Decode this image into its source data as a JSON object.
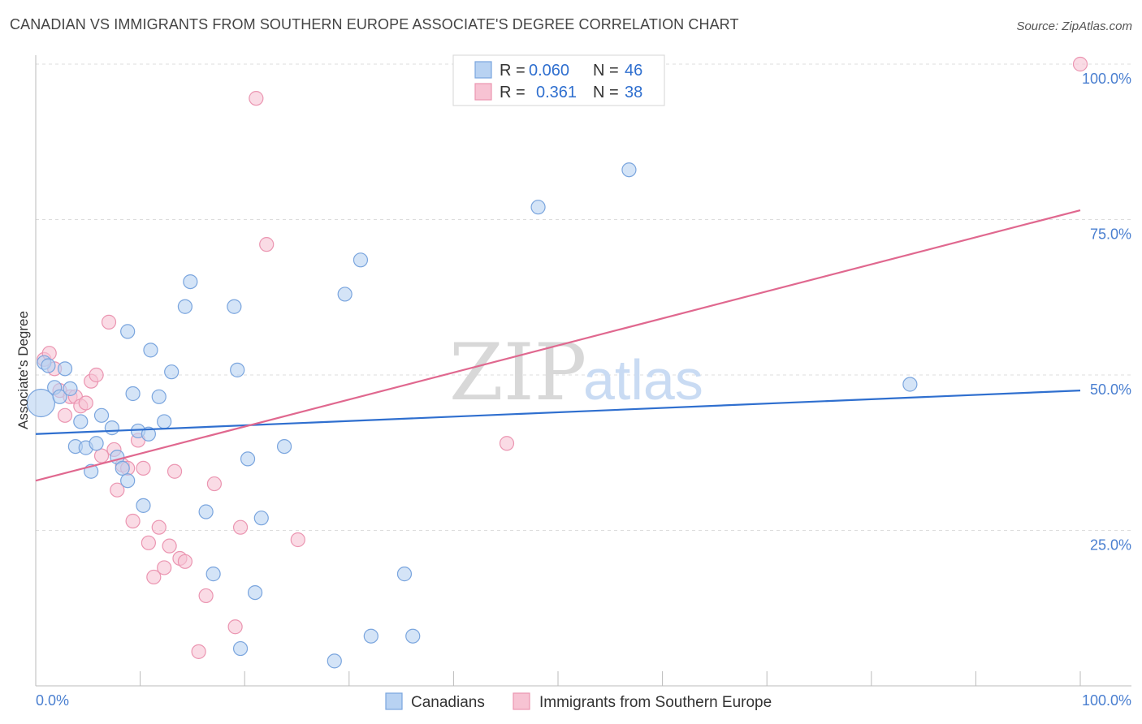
{
  "title": "CANADIAN VS IMMIGRANTS FROM SOUTHERN EUROPE ASSOCIATE'S DEGREE CORRELATION CHART",
  "source": "Source: ZipAtlas.com",
  "watermark": {
    "zip": "ZIP",
    "atlas": "atlas"
  },
  "legend_top": {
    "rows": [
      {
        "r_label": "R =",
        "r_value": "0.060",
        "n_label": "N =",
        "n_value": "46"
      },
      {
        "r_label": "R =",
        "r_value": "0.361",
        "n_label": "N =",
        "n_value": "38"
      }
    ]
  },
  "legend_bottom": [
    {
      "label": "Canadians"
    },
    {
      "label": "Immigrants from Southern Europe"
    }
  ],
  "colors": {
    "blue_fill": "#b8d2f2",
    "blue_stroke": "#7aa5de",
    "blue_line": "#2f6fcf",
    "pink_fill": "#f7c3d3",
    "pink_stroke": "#eb95b1",
    "pink_line": "#e0688f",
    "label_blue": "#4a7fd0"
  },
  "chart_data": {
    "type": "scatter",
    "title": "CANADIAN VS IMMIGRANTS FROM SOUTHERN EUROPE ASSOCIATE'S DEGREE CORRELATION CHART",
    "xlabel": "",
    "ylabel": "Associate's Degree",
    "xlim": [
      0,
      100
    ],
    "ylim": [
      0,
      100
    ],
    "x_tick_labels": [
      "0.0%",
      "100.0%"
    ],
    "y_tick_labels": [
      "25.0%",
      "50.0%",
      "75.0%",
      "100.0%"
    ],
    "y_ticks": [
      25,
      50,
      75,
      100
    ],
    "series": [
      {
        "name": "Canadians",
        "color": "blue",
        "r": 0.06,
        "n": 46,
        "trend": {
          "x0": 0,
          "y0": 40.5,
          "x1": 100,
          "y1": 47.5
        },
        "points": [
          [
            0.5,
            45.5
          ],
          [
            0.8,
            52.0
          ],
          [
            1.2,
            51.5
          ],
          [
            1.8,
            48.0
          ],
          [
            2.3,
            46.5
          ],
          [
            2.8,
            51.0
          ],
          [
            3.3,
            47.8
          ],
          [
            3.8,
            38.5
          ],
          [
            4.3,
            42.5
          ],
          [
            4.8,
            38.3
          ],
          [
            5.3,
            34.5
          ],
          [
            5.8,
            39.0
          ],
          [
            6.3,
            43.5
          ],
          [
            7.3,
            41.5
          ],
          [
            7.8,
            36.8
          ],
          [
            8.3,
            35.0
          ],
          [
            8.8,
            33.0
          ],
          [
            8.8,
            57.0
          ],
          [
            9.3,
            47.0
          ],
          [
            9.8,
            41.0
          ],
          [
            10.3,
            29.0
          ],
          [
            10.8,
            40.5
          ],
          [
            11.0,
            54.0
          ],
          [
            11.8,
            46.5
          ],
          [
            12.3,
            42.5
          ],
          [
            13.0,
            50.5
          ],
          [
            14.3,
            61.0
          ],
          [
            14.8,
            65.0
          ],
          [
            16.3,
            28.0
          ],
          [
            17.0,
            18.0
          ],
          [
            19.0,
            61.0
          ],
          [
            19.3,
            50.8
          ],
          [
            19.6,
            6.0
          ],
          [
            20.3,
            36.5
          ],
          [
            21.0,
            15.0
          ],
          [
            21.6,
            27.0
          ],
          [
            23.8,
            38.5
          ],
          [
            28.6,
            4.0
          ],
          [
            29.6,
            63.0
          ],
          [
            31.1,
            68.5
          ],
          [
            32.1,
            8.0
          ],
          [
            35.3,
            18.0
          ],
          [
            36.1,
            8.0
          ],
          [
            48.1,
            77.0
          ],
          [
            56.8,
            83.0
          ],
          [
            83.7,
            48.5
          ]
        ]
      },
      {
        "name": "Immigrants from Southern Europe",
        "color": "pink",
        "r": 0.361,
        "n": 38,
        "trend": {
          "x0": 0,
          "y0": 33.0,
          "x1": 100,
          "y1": 76.5
        },
        "points": [
          [
            0.8,
            52.5
          ],
          [
            1.3,
            53.5
          ],
          [
            1.8,
            51.0
          ],
          [
            2.3,
            47.5
          ],
          [
            2.8,
            43.5
          ],
          [
            3.3,
            46.5
          ],
          [
            3.8,
            46.5
          ],
          [
            4.3,
            45.0
          ],
          [
            4.8,
            45.5
          ],
          [
            5.3,
            49.0
          ],
          [
            5.8,
            50.0
          ],
          [
            6.3,
            37.0
          ],
          [
            7.0,
            58.5
          ],
          [
            7.5,
            38.0
          ],
          [
            7.8,
            31.5
          ],
          [
            8.3,
            35.5
          ],
          [
            8.8,
            35.0
          ],
          [
            9.3,
            26.5
          ],
          [
            9.8,
            39.5
          ],
          [
            10.3,
            35.0
          ],
          [
            10.8,
            23.0
          ],
          [
            11.3,
            17.5
          ],
          [
            11.8,
            25.5
          ],
          [
            12.3,
            19.0
          ],
          [
            12.8,
            22.5
          ],
          [
            13.3,
            34.5
          ],
          [
            13.8,
            20.5
          ],
          [
            14.3,
            20.0
          ],
          [
            15.6,
            5.5
          ],
          [
            16.3,
            14.5
          ],
          [
            17.1,
            32.5
          ],
          [
            19.1,
            9.5
          ],
          [
            19.6,
            25.5
          ],
          [
            21.1,
            94.5
          ],
          [
            22.1,
            71.0
          ],
          [
            25.1,
            23.5
          ],
          [
            45.1,
            39.0
          ],
          [
            100.0,
            100.0
          ]
        ]
      }
    ]
  }
}
